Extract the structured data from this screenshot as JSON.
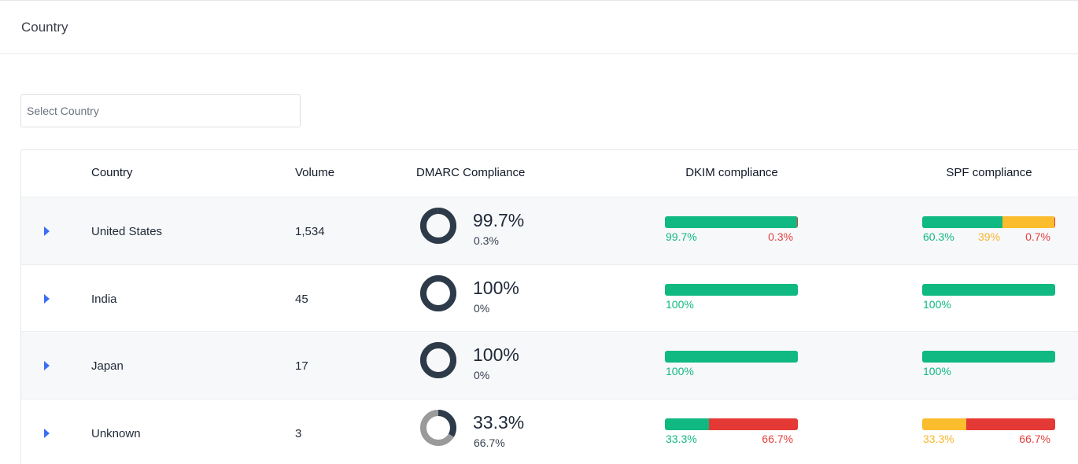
{
  "header": {
    "title": "Country"
  },
  "select": {
    "placeholder": "Select Country"
  },
  "colors": {
    "pass": "#10b981",
    "partial": "#fbbc2d",
    "fail": "#e53935",
    "donut_pass": "#2d3a4a",
    "donut_fail": "#9a9a9a"
  },
  "table": {
    "headers": {
      "country": "Country",
      "volume": "Volume",
      "dmarc": "DMARC Compliance",
      "dkim": "DKIM compliance",
      "spf": "SPF compliance"
    },
    "rows": [
      {
        "country": "United States",
        "volume": "1,534",
        "dmarc_pass": "99.7%",
        "dmarc_fail": "0.3%",
        "dmarc_pass_value": 99.7,
        "dkim": {
          "pass": 99.7,
          "partial": 0,
          "fail": 0.3,
          "labels": {
            "pass": "99.7%",
            "partial": "",
            "fail": "0.3%"
          }
        },
        "spf": {
          "pass": 60.3,
          "partial": 39,
          "fail": 0.7,
          "labels": {
            "pass": "60.3%",
            "partial": "39%",
            "fail": "0.7%"
          }
        }
      },
      {
        "country": "India",
        "volume": "45",
        "dmarc_pass": "100%",
        "dmarc_fail": "0%",
        "dmarc_pass_value": 100,
        "dkim": {
          "pass": 100,
          "partial": 0,
          "fail": 0,
          "labels": {
            "pass": "100%",
            "partial": "",
            "fail": ""
          }
        },
        "spf": {
          "pass": 100,
          "partial": 0,
          "fail": 0,
          "labels": {
            "pass": "100%",
            "partial": "",
            "fail": ""
          }
        }
      },
      {
        "country": "Japan",
        "volume": "17",
        "dmarc_pass": "100%",
        "dmarc_fail": "0%",
        "dmarc_pass_value": 100,
        "dkim": {
          "pass": 100,
          "partial": 0,
          "fail": 0,
          "labels": {
            "pass": "100%",
            "partial": "",
            "fail": ""
          }
        },
        "spf": {
          "pass": 100,
          "partial": 0,
          "fail": 0,
          "labels": {
            "pass": "100%",
            "partial": "",
            "fail": ""
          }
        }
      },
      {
        "country": "Unknown",
        "volume": "3",
        "dmarc_pass": "33.3%",
        "dmarc_fail": "66.7%",
        "dmarc_pass_value": 33.3,
        "dkim": {
          "pass": 33.3,
          "partial": 0,
          "fail": 66.7,
          "labels": {
            "pass": "33.3%",
            "partial": "",
            "fail": "66.7%"
          }
        },
        "spf": {
          "pass": 0,
          "partial": 33.3,
          "fail": 66.7,
          "labels": {
            "pass": "",
            "partial": "33.3%",
            "fail": "66.7%"
          }
        }
      }
    ]
  }
}
